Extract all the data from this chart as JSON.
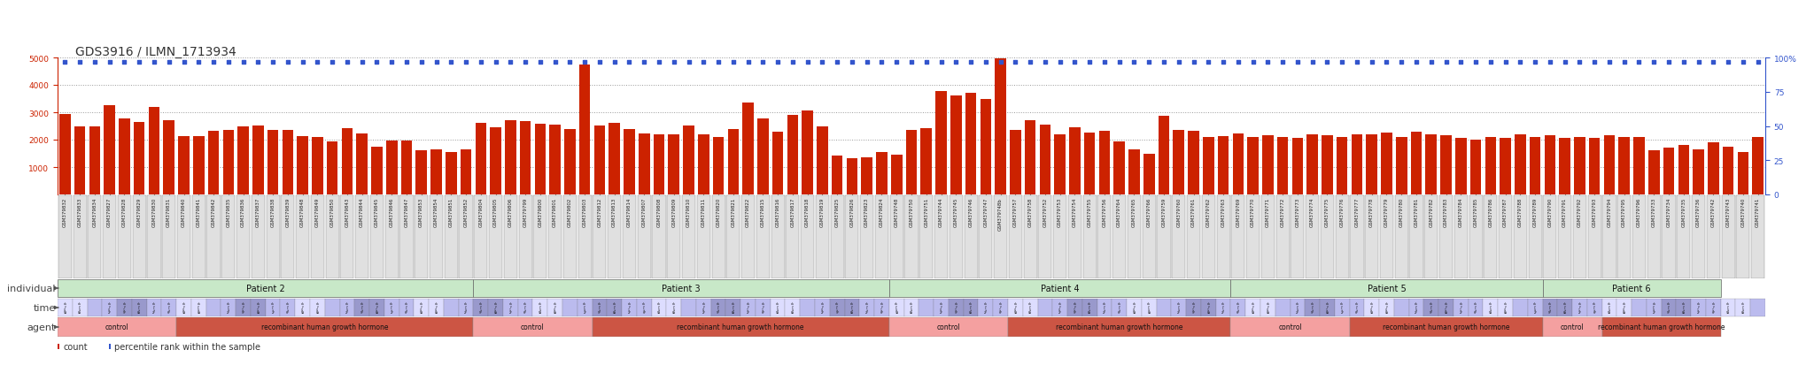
{
  "title": "GDS3916 / ILMN_1713934",
  "samples": [
    "GSM379832",
    "GSM379833",
    "GSM379834",
    "GSM379827",
    "GSM379828",
    "GSM379829",
    "GSM379830",
    "GSM379831",
    "GSM379840",
    "GSM379841",
    "GSM379842",
    "GSM379835",
    "GSM379836",
    "GSM379837",
    "GSM379838",
    "GSM379839",
    "GSM379848",
    "GSM379849",
    "GSM379850",
    "GSM379843",
    "GSM379844",
    "GSM379845",
    "GSM379846",
    "GSM379847",
    "GSM379853",
    "GSM379854",
    "GSM379851",
    "GSM379852",
    "GSM379804",
    "GSM379805",
    "GSM379806",
    "GSM379799",
    "GSM379800",
    "GSM379801",
    "GSM379802",
    "GSM379803",
    "GSM379812",
    "GSM379813",
    "GSM379814",
    "GSM379807",
    "GSM379808",
    "GSM379809",
    "GSM379810",
    "GSM379811",
    "GSM379820",
    "GSM379821",
    "GSM379822",
    "GSM379815",
    "GSM379816",
    "GSM379817",
    "GSM379818",
    "GSM379819",
    "GSM379825",
    "GSM379826",
    "GSM379823",
    "GSM379824",
    "GSM379748",
    "GSM379750",
    "GSM379751",
    "GSM379744",
    "GSM379745",
    "GSM379746",
    "GSM379747",
    "GSM379748b",
    "GSM379757",
    "GSM379758",
    "GSM379752",
    "GSM379753",
    "GSM379754",
    "GSM379755",
    "GSM379756",
    "GSM379764",
    "GSM379765",
    "GSM379766",
    "GSM379759",
    "GSM379760",
    "GSM379761",
    "GSM379762",
    "GSM379763",
    "GSM379769",
    "GSM379770",
    "GSM379771",
    "GSM379772",
    "GSM379773",
    "GSM379774",
    "GSM379775",
    "GSM379776",
    "GSM379777",
    "GSM379778",
    "GSM379779",
    "GSM379780",
    "GSM379781",
    "GSM379782",
    "GSM379783",
    "GSM379784",
    "GSM379785",
    "GSM379786",
    "GSM379787",
    "GSM379788",
    "GSM379789",
    "GSM379790",
    "GSM379791",
    "GSM379792",
    "GSM379793",
    "GSM379794",
    "GSM379795",
    "GSM379796",
    "GSM379733",
    "GSM379734",
    "GSM379735",
    "GSM379736",
    "GSM379742",
    "GSM379743",
    "GSM379740",
    "GSM379741"
  ],
  "counts": [
    2950,
    2490,
    2470,
    3260,
    2790,
    2650,
    3180,
    2700,
    2120,
    2130,
    2310,
    2360,
    2490,
    2520,
    2340,
    2360,
    2130,
    2110,
    1940,
    2430,
    2220,
    1730,
    1960,
    1980,
    1600,
    1650,
    1540,
    1650,
    2620,
    2450,
    2700,
    2680,
    2590,
    2560,
    2380,
    4750,
    2530,
    2600,
    2380,
    2240,
    2200,
    2180,
    2530,
    2190,
    2100,
    2390,
    3370,
    2780,
    2300,
    2900,
    3050,
    2500,
    1430,
    1310,
    1350,
    1540,
    1450,
    2350,
    2430,
    3760,
    3620,
    3700,
    3490,
    4980,
    2350,
    2710,
    2540,
    2200,
    2460,
    2270,
    2310,
    1940,
    1650,
    1490,
    2880,
    2350,
    2330,
    2100,
    2120,
    2210,
    2100,
    2150,
    2090,
    2050,
    2200,
    2150,
    2100,
    2200,
    2180,
    2250,
    2100,
    2300,
    2180,
    2150,
    2050,
    2000,
    2100,
    2050,
    2200,
    2100,
    2150,
    2080,
    2100,
    2050,
    2150,
    2100,
    2090,
    1600,
    1700,
    1800,
    1650,
    1900,
    1750,
    1550,
    2100
  ],
  "bar_color": "#cc2200",
  "dot_color": "#3355cc",
  "background_color": "#ffffff",
  "grid_color": "#999999",
  "title_color": "#333333",
  "left_axis_color": "#cc2200",
  "right_axis_color": "#3355cc",
  "ylim_left": [
    0,
    5000
  ],
  "ylim_right": [
    0,
    100
  ],
  "yticks_left": [
    1000,
    2000,
    3000,
    4000,
    5000
  ],
  "yticks_right": [
    0,
    25,
    50,
    75,
    100
  ],
  "individual_color": "#c8e8c8",
  "individual_border": "#888888",
  "time_color_A": "#9999cc",
  "time_color_B": "#bbbbee",
  "time_color_C": "#ddddff",
  "agent_control_color": "#f4a0a0",
  "agent_rhgh_color": "#cc5544",
  "row_label_color": "#444444",
  "row_label_fontsize": 8,
  "tick_fontsize": 6.5,
  "title_fontsize": 10,
  "patient_list": [
    [
      "Patient 2",
      0,
      27
    ],
    [
      "Patient 3",
      28,
      55
    ],
    [
      "Patient 4",
      56,
      78
    ],
    [
      "Patient 5",
      79,
      99
    ],
    [
      "Patient 6",
      100,
      111
    ]
  ],
  "agent_blocks": [
    [
      0,
      7,
      "control"
    ],
    [
      8,
      27,
      "recombinant human growth hormone"
    ],
    [
      28,
      35,
      "control"
    ],
    [
      36,
      55,
      "recombinant human growth hormone"
    ],
    [
      56,
      63,
      "control"
    ],
    [
      64,
      78,
      "recombinant human growth hormone"
    ],
    [
      79,
      86,
      "control"
    ],
    [
      87,
      99,
      "recombinant human growth hormone"
    ],
    [
      100,
      103,
      "control"
    ],
    [
      104,
      111,
      "recombinant human growth hormone"
    ]
  ]
}
